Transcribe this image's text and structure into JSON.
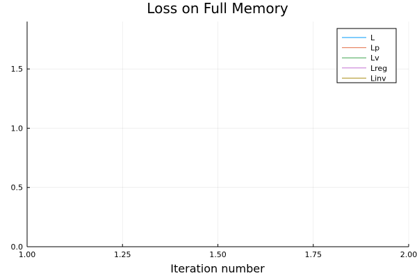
{
  "chart_data": {
    "type": "line",
    "title": "Loss on Full Memory",
    "xlabel": "Iteration number",
    "ylabel": "",
    "xlim": [
      1.0,
      2.0
    ],
    "ylim": [
      0.0,
      1.9
    ],
    "x_ticks": [
      1.0,
      1.25,
      1.5,
      1.75,
      2.0
    ],
    "x_tick_labels": [
      "1.00",
      "1.25",
      "1.50",
      "1.75",
      "2.00"
    ],
    "y_ticks": [
      0.0,
      0.5,
      1.0,
      1.5
    ],
    "y_tick_labels": [
      "0.0",
      "0.5",
      "1.0",
      "1.5"
    ],
    "grid": true,
    "legend_position": "top-right",
    "series": [
      {
        "name": "L",
        "color": "#009AFA",
        "x": [],
        "y": []
      },
      {
        "name": "Lp",
        "color": "#E36F47",
        "x": [],
        "y": []
      },
      {
        "name": "Lv",
        "color": "#3EA44E",
        "x": [],
        "y": []
      },
      {
        "name": "Lreg",
        "color": "#C371D2",
        "x": [],
        "y": []
      },
      {
        "name": "Linv",
        "color": "#AC8E18",
        "x": [],
        "y": []
      }
    ]
  }
}
